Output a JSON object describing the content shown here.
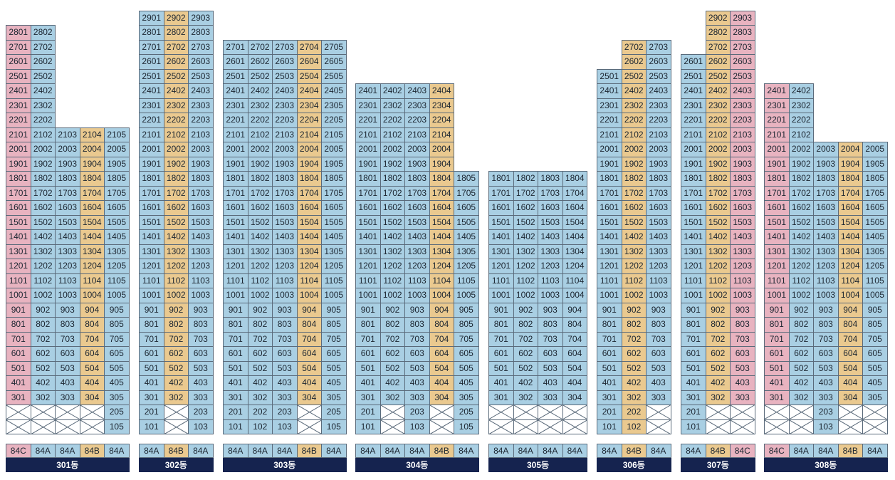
{
  "colors": {
    "84A": "#a9cfe3",
    "84B": "#eac98f",
    "84C": "#e8b3c0",
    "empty": "#ffffff",
    "border": "#5a6a7a",
    "label_bg": "#15234f",
    "label_text": "#ffffff"
  },
  "buildings": [
    {
      "name": "301동",
      "types": [
        "84C",
        "84A",
        "84A",
        "84B",
        "84A"
      ],
      "stacks": [
        {
          "ho": 1,
          "floors": [
            1,
            28
          ],
          "empty": [
            1,
            2
          ]
        },
        {
          "ho": 2,
          "floors": [
            1,
            28
          ],
          "empty": [
            1,
            2
          ]
        },
        {
          "ho": 3,
          "floors": [
            1,
            21
          ],
          "empty": [
            1,
            2
          ]
        },
        {
          "ho": 4,
          "floors": [
            1,
            21
          ],
          "empty": [
            1,
            2
          ]
        },
        {
          "ho": 5,
          "floors": [
            1,
            21
          ],
          "empty": []
        }
      ]
    },
    {
      "name": "302동",
      "types": [
        "84A",
        "84B",
        "84A"
      ],
      "stacks": [
        {
          "ho": 1,
          "floors": [
            1,
            29
          ],
          "empty": []
        },
        {
          "ho": 2,
          "floors": [
            1,
            29
          ],
          "empty": [
            1,
            2
          ]
        },
        {
          "ho": 3,
          "floors": [
            1,
            29
          ],
          "empty": []
        }
      ]
    },
    {
      "name": "303동",
      "types": [
        "84A",
        "84A",
        "84A",
        "84B",
        "84A"
      ],
      "stacks": [
        {
          "ho": 1,
          "floors": [
            1,
            27
          ],
          "empty": []
        },
        {
          "ho": 2,
          "floors": [
            1,
            27
          ],
          "empty": []
        },
        {
          "ho": 3,
          "floors": [
            1,
            27
          ],
          "empty": []
        },
        {
          "ho": 4,
          "floors": [
            1,
            27
          ],
          "empty": [
            1,
            2
          ]
        },
        {
          "ho": 5,
          "floors": [
            1,
            27
          ],
          "empty": []
        }
      ]
    },
    {
      "name": "304동",
      "types": [
        "84A",
        "84A",
        "84A",
        "84B",
        "84A"
      ],
      "stacks": [
        {
          "ho": 1,
          "floors": [
            1,
            24
          ],
          "empty": []
        },
        {
          "ho": 2,
          "floors": [
            1,
            24
          ],
          "empty": [
            1,
            2
          ]
        },
        {
          "ho": 3,
          "floors": [
            1,
            24
          ],
          "empty": []
        },
        {
          "ho": 4,
          "floors": [
            1,
            24
          ],
          "empty": [
            1,
            2
          ]
        },
        {
          "ho": 5,
          "floors": [
            1,
            18
          ],
          "empty": []
        }
      ]
    },
    {
      "name": "305동",
      "types": [
        "84A",
        "84A",
        "84A",
        "84A"
      ],
      "stacks": [
        {
          "ho": 1,
          "floors": [
            1,
            18
          ],
          "empty": [
            1,
            2
          ]
        },
        {
          "ho": 2,
          "floors": [
            1,
            18
          ],
          "empty": [
            1,
            2
          ]
        },
        {
          "ho": 3,
          "floors": [
            1,
            18
          ],
          "empty": [
            1,
            2
          ]
        },
        {
          "ho": 4,
          "floors": [
            1,
            18
          ],
          "empty": [
            1,
            2
          ]
        }
      ]
    },
    {
      "name": "306동",
      "types": [
        "84A",
        "84B",
        "84A"
      ],
      "stacks": [
        {
          "ho": 1,
          "floors": [
            1,
            25
          ],
          "empty": []
        },
        {
          "ho": 2,
          "floors": [
            1,
            27
          ],
          "empty": []
        },
        {
          "ho": 3,
          "floors": [
            1,
            27
          ],
          "empty": [
            1,
            2
          ]
        }
      ]
    },
    {
      "name": "307동",
      "types": [
        "84A",
        "84B",
        "84C"
      ],
      "stacks": [
        {
          "ho": 1,
          "floors": [
            1,
            26
          ],
          "empty": []
        },
        {
          "ho": 2,
          "floors": [
            1,
            29
          ],
          "empty": [
            1,
            2
          ]
        },
        {
          "ho": 3,
          "floors": [
            1,
            29
          ],
          "empty": [
            1,
            2
          ]
        }
      ]
    },
    {
      "name": "308동",
      "types": [
        "84C",
        "84A",
        "84A",
        "84B",
        "84A"
      ],
      "stacks": [
        {
          "ho": 1,
          "floors": [
            1,
            24
          ],
          "empty": [
            1,
            2
          ]
        },
        {
          "ho": 2,
          "floors": [
            1,
            24
          ],
          "empty": [
            1,
            2
          ]
        },
        {
          "ho": 3,
          "floors": [
            1,
            20
          ],
          "empty": []
        },
        {
          "ho": 4,
          "floors": [
            1,
            20
          ],
          "empty": [
            1,
            2
          ]
        },
        {
          "ho": 5,
          "floors": [
            1,
            20
          ],
          "empty": [
            1,
            2
          ]
        }
      ]
    }
  ]
}
